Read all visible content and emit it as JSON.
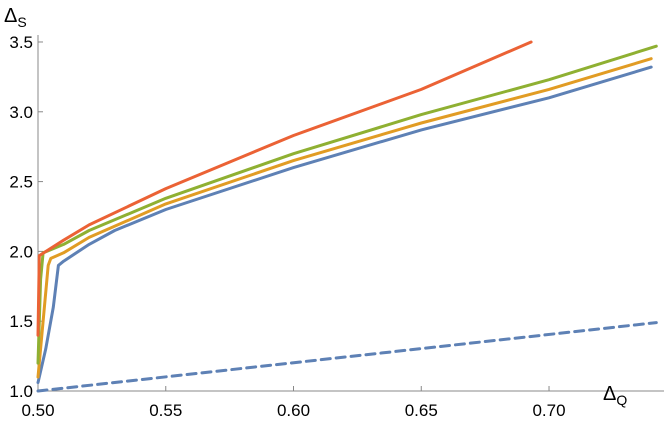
{
  "chart_data": {
    "type": "line",
    "title": "",
    "xlabel": {
      "main": "Δ",
      "sub": "Q"
    },
    "ylabel": {
      "main": "Δ",
      "sub": "S"
    },
    "xlim": [
      0.5,
      0.745
    ],
    "ylim": [
      1.0,
      3.55
    ],
    "x_ticks": [
      "0.50",
      "0.55",
      "0.60",
      "0.65",
      "0.70"
    ],
    "y_ticks": [
      "1.0",
      "1.5",
      "2.0",
      "2.5",
      "3.0",
      "3.5"
    ],
    "grid": false,
    "legend": "none",
    "series": [
      {
        "color": "#5e81b5",
        "style": "solid",
        "points": [
          [
            0.5,
            1.06
          ],
          [
            0.503,
            1.3
          ],
          [
            0.506,
            1.6
          ],
          [
            0.508,
            1.9
          ],
          [
            0.51,
            1.93
          ],
          [
            0.52,
            2.05
          ],
          [
            0.53,
            2.15
          ],
          [
            0.55,
            2.3
          ],
          [
            0.6,
            2.6
          ],
          [
            0.65,
            2.87
          ],
          [
            0.7,
            3.1
          ],
          [
            0.74,
            3.32
          ]
        ]
      },
      {
        "color": "#e19c24",
        "style": "solid",
        "points": [
          [
            0.5,
            1.1
          ],
          [
            0.502,
            1.5
          ],
          [
            0.504,
            1.9
          ],
          [
            0.505,
            1.95
          ],
          [
            0.51,
            1.99
          ],
          [
            0.52,
            2.1
          ],
          [
            0.55,
            2.34
          ],
          [
            0.6,
            2.65
          ],
          [
            0.65,
            2.92
          ],
          [
            0.7,
            3.16
          ],
          [
            0.74,
            3.38
          ]
        ]
      },
      {
        "color": "#8fb032",
        "style": "solid",
        "points": [
          [
            0.5,
            1.2
          ],
          [
            0.501,
            1.8
          ],
          [
            0.502,
            1.99
          ],
          [
            0.51,
            2.05
          ],
          [
            0.52,
            2.15
          ],
          [
            0.55,
            2.38
          ],
          [
            0.6,
            2.7
          ],
          [
            0.65,
            2.98
          ],
          [
            0.7,
            3.23
          ],
          [
            0.742,
            3.47
          ]
        ]
      },
      {
        "color": "#eb6235",
        "style": "solid",
        "points": [
          [
            0.5,
            1.4
          ],
          [
            0.5005,
            1.97
          ],
          [
            0.51,
            2.08
          ],
          [
            0.52,
            2.19
          ],
          [
            0.55,
            2.45
          ],
          [
            0.6,
            2.83
          ],
          [
            0.65,
            3.16
          ],
          [
            0.693,
            3.5
          ]
        ]
      },
      {
        "color": "#5e81b5",
        "style": "dashed",
        "points": [
          [
            0.5,
            1.0
          ],
          [
            0.742,
            1.49
          ]
        ]
      }
    ]
  }
}
